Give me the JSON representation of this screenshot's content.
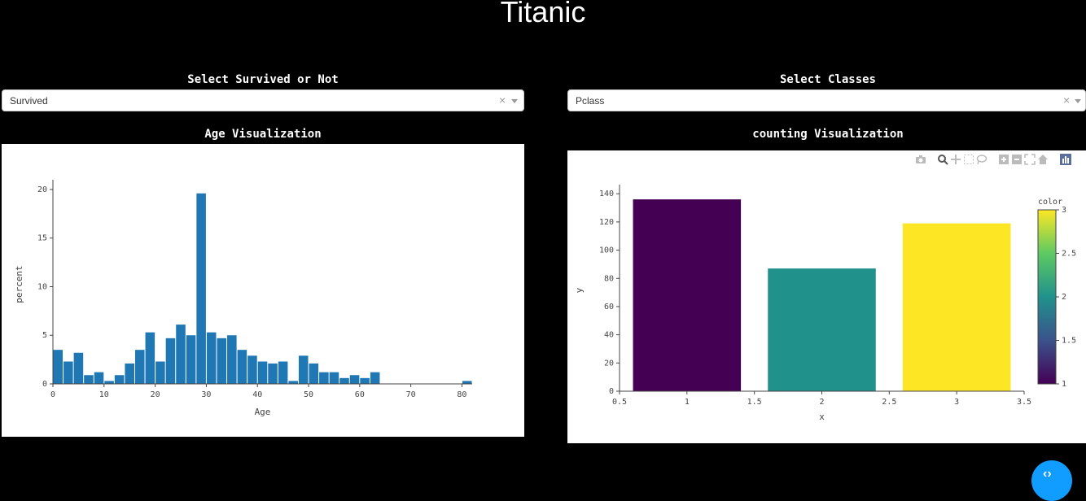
{
  "page": {
    "title": "Titanic"
  },
  "left": {
    "label": "Select Survived or Not",
    "dropdown": {
      "value": "Survived",
      "clear": "×"
    },
    "chart_title": "Age Visualization"
  },
  "right": {
    "label": "Select Classes",
    "dropdown": {
      "value": "Pclass",
      "clear": "×"
    },
    "chart_title": "counting Visualization"
  },
  "fab": {
    "glyph": "‹›"
  },
  "chart_data": [
    {
      "type": "bar",
      "subtype": "histogram",
      "xlabel": "Age",
      "ylabel": "percent",
      "xlim": [
        0,
        82
      ],
      "ylim": [
        0,
        20.5
      ],
      "xticks": [
        0,
        10,
        20,
        30,
        40,
        50,
        60,
        70,
        80
      ],
      "yticks": [
        0,
        5,
        10,
        15,
        20
      ],
      "bar_color": "#1f77b4",
      "bin_width": 2,
      "bin_starts": [
        0,
        2,
        4,
        6,
        8,
        10,
        12,
        14,
        16,
        18,
        20,
        22,
        24,
        26,
        28,
        30,
        32,
        34,
        36,
        38,
        40,
        42,
        44,
        46,
        48,
        50,
        52,
        54,
        56,
        58,
        60,
        62,
        64,
        66,
        68,
        70,
        72,
        74,
        76,
        78,
        80
      ],
      "values": [
        3.5,
        2.3,
        3.2,
        0.9,
        1.2,
        0.3,
        0.9,
        2.1,
        3.5,
        5.3,
        2.3,
        4.7,
        6.1,
        5.0,
        19.6,
        5.3,
        4.7,
        5.0,
        3.5,
        2.9,
        2.3,
        2.1,
        2.3,
        0.3,
        2.9,
        2.1,
        1.2,
        1.2,
        0.6,
        0.9,
        0.6,
        1.2,
        0,
        0,
        0,
        0,
        0,
        0,
        0,
        0,
        0.3
      ]
    },
    {
      "type": "bar",
      "xlabel": "x",
      "ylabel": "y",
      "xlim": [
        0.5,
        3.5
      ],
      "ylim": [
        0,
        143
      ],
      "xticks": [
        0.5,
        1,
        1.5,
        2,
        2.5,
        3,
        3.5
      ],
      "yticks": [
        0,
        20,
        40,
        60,
        80,
        100,
        120,
        140
      ],
      "x": [
        1,
        2,
        3
      ],
      "values": [
        136,
        87,
        119
      ],
      "colors": [
        "#440154",
        "#21918c",
        "#fde725"
      ],
      "colorbar": {
        "title": "color",
        "range": [
          1,
          3
        ],
        "ticks": [
          1,
          1.5,
          2,
          2.5,
          3
        ],
        "stops": [
          "#440154",
          "#3b528b",
          "#21918c",
          "#5ec962",
          "#fde725"
        ]
      }
    }
  ]
}
